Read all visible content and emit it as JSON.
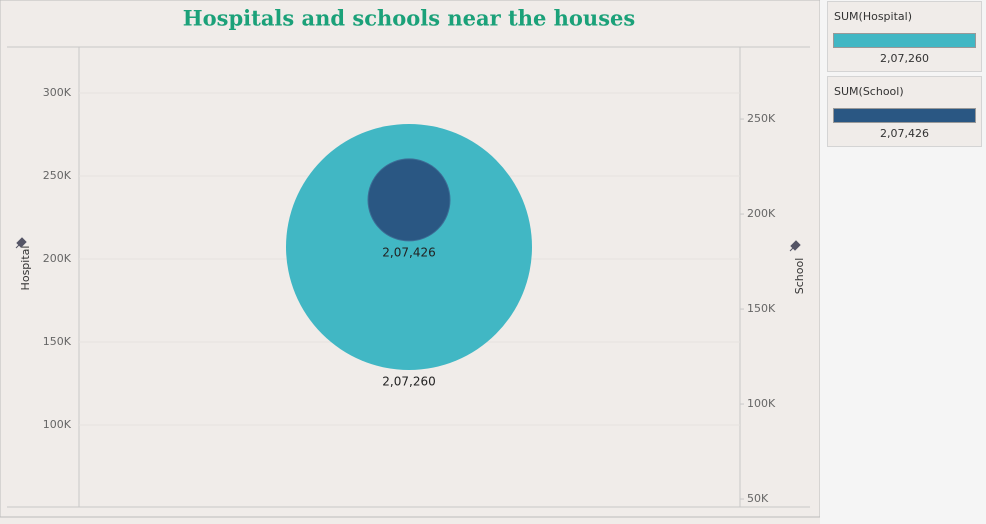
{
  "chart_data": {
    "type": "bubble",
    "title": "Hospitals and schools near the houses",
    "ylabel": "Hospital",
    "y2label": "School",
    "ylim": [
      50600,
      327100
    ],
    "yticks": [
      {
        "value": 100000,
        "label": "100K"
      },
      {
        "value": 150000,
        "label": "150K"
      },
      {
        "value": 200000,
        "label": "200K"
      },
      {
        "value": 250000,
        "label": "250K"
      },
      {
        "value": 300000,
        "label": "300K"
      }
    ],
    "y2lim": [
      45800,
      287400
    ],
    "y2ticks": [
      {
        "value": 50000,
        "label": "50K"
      },
      {
        "value": 100000,
        "label": "100K"
      },
      {
        "value": 150000,
        "label": "150K"
      },
      {
        "value": 200000,
        "label": "200K"
      },
      {
        "value": 250000,
        "label": "250K"
      }
    ],
    "grid": true,
    "series": [
      {
        "name": "SUM(Hospital)",
        "color": "#41b7c4",
        "values": [
          207260
        ],
        "value_labels": [
          "2,07,260"
        ]
      },
      {
        "name": "SUM(School)",
        "color": "#2a5783",
        "axis": "y2",
        "values": [
          207426
        ],
        "value_labels": [
          "2,07,426"
        ]
      }
    ]
  }
}
